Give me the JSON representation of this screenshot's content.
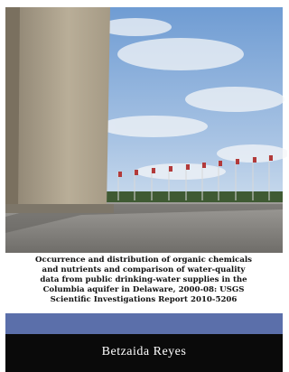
{
  "cover": {
    "title_lines": [
      "Occurrence and distribution of organic chemicals",
      "and nutrients and comparison of water-quality",
      "data from public drinking-water supplies in the",
      "Columbia aquifer in Delaware, 2000-08: USGS",
      "Scientific Investigations Report 2010-5206"
    ],
    "author": "Betzaida Reyes"
  }
}
